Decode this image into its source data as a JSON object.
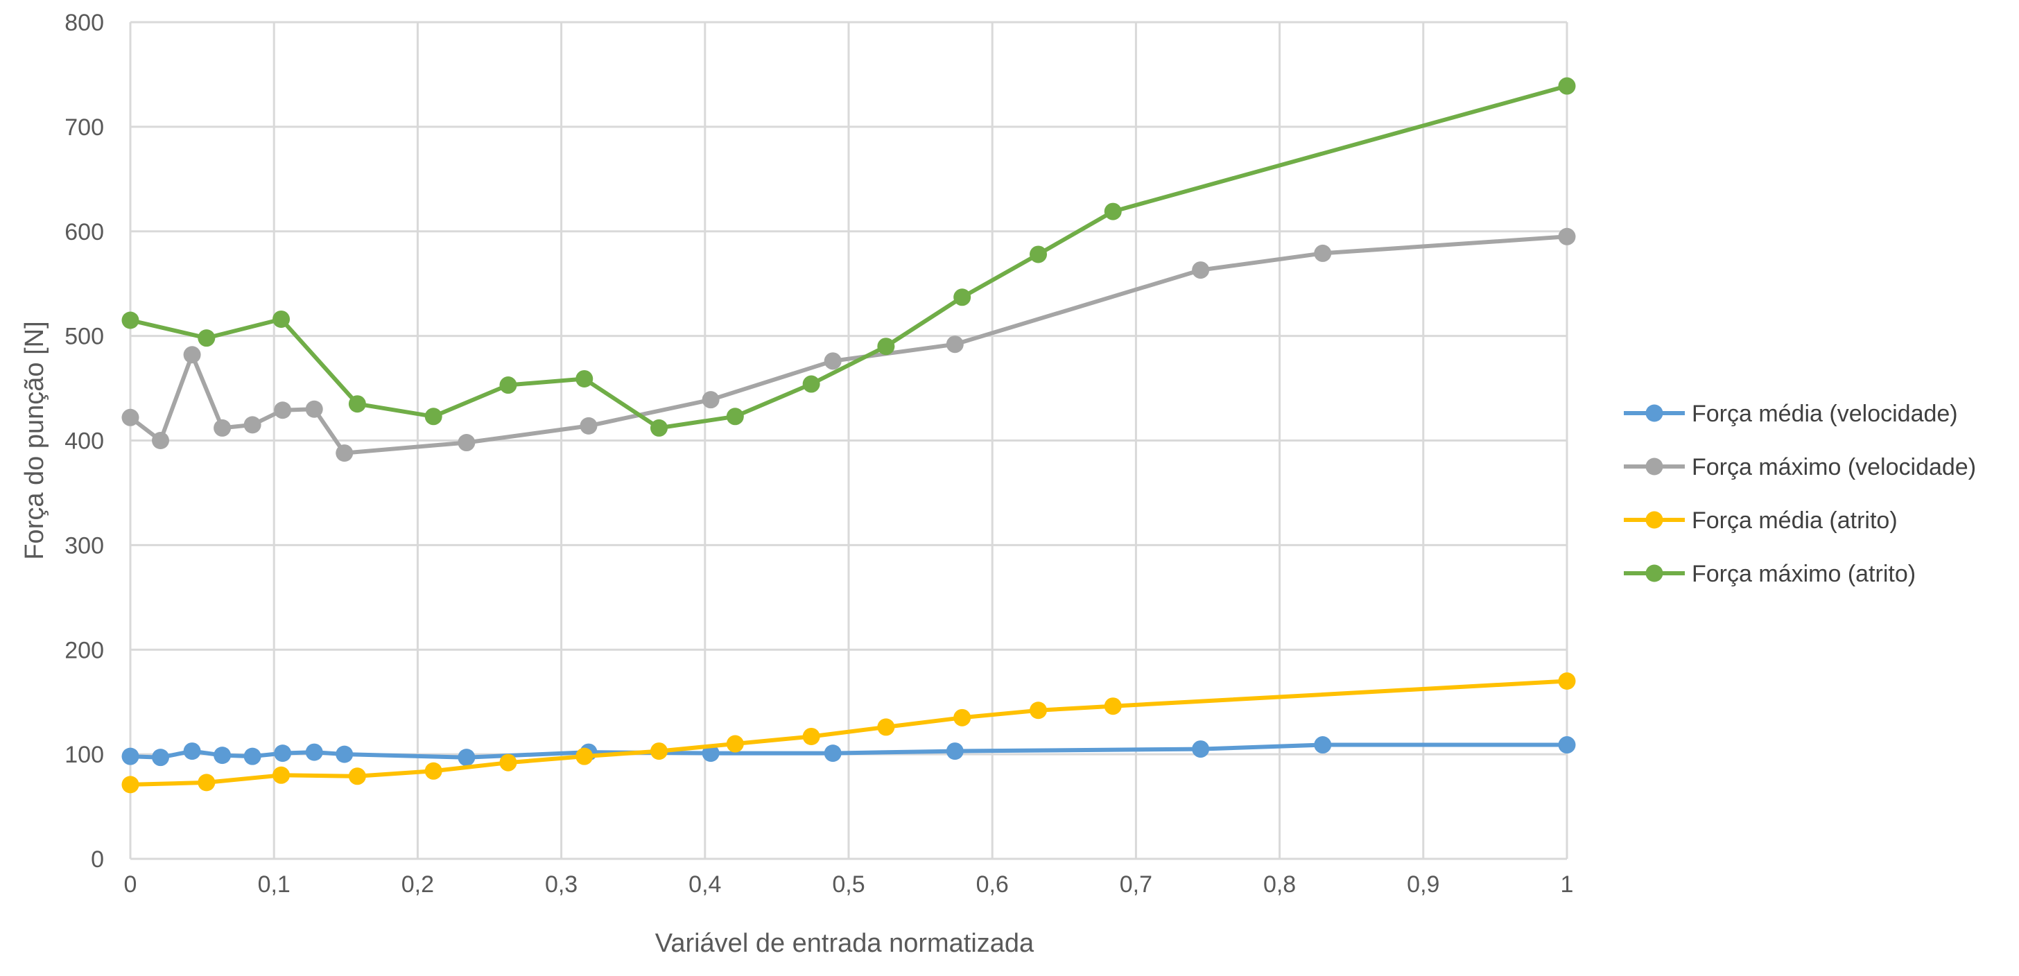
{
  "chart_data": {
    "type": "line",
    "title": "",
    "xlabel": "Variável de entrada normatizada",
    "ylabel": "Força do punção [N]",
    "xlim": [
      0,
      1
    ],
    "ylim": [
      0,
      800
    ],
    "x_ticks": [
      0,
      0.1,
      0.2,
      0.3,
      0.4,
      0.5,
      0.6,
      0.7,
      0.8,
      0.9,
      1
    ],
    "x_tick_labels": [
      "0",
      "0,1",
      "0,2",
      "0,3",
      "0,4",
      "0,5",
      "0,6",
      "0,7",
      "0,8",
      "0,9",
      "1"
    ],
    "y_ticks": [
      0,
      100,
      200,
      300,
      400,
      500,
      600,
      700,
      800
    ],
    "y_tick_labels": [
      "0",
      "100",
      "200",
      "300",
      "400",
      "500",
      "600",
      "700",
      "800"
    ],
    "grid": true,
    "legend_position": "right",
    "series": [
      {
        "name": "Força média (velocidade)",
        "color": "#5b9bd5",
        "points": [
          [
            0,
            98
          ],
          [
            0.021,
            97
          ],
          [
            0.043,
            103
          ],
          [
            0.064,
            99
          ],
          [
            0.085,
            98
          ],
          [
            0.106,
            101
          ],
          [
            0.128,
            102
          ],
          [
            0.149,
            100
          ],
          [
            0.234,
            97
          ],
          [
            0.319,
            102
          ],
          [
            0.404,
            101
          ],
          [
            0.489,
            101
          ],
          [
            0.574,
            103
          ],
          [
            0.745,
            105
          ],
          [
            0.83,
            109
          ],
          [
            1,
            109
          ]
        ]
      },
      {
        "name": "Força máximo (velocidade)",
        "color": "#a5a5a5",
        "points": [
          [
            0,
            422
          ],
          [
            0.021,
            400
          ],
          [
            0.043,
            482
          ],
          [
            0.064,
            412
          ],
          [
            0.085,
            415
          ],
          [
            0.106,
            429
          ],
          [
            0.128,
            430
          ],
          [
            0.149,
            388
          ],
          [
            0.234,
            398
          ],
          [
            0.319,
            414
          ],
          [
            0.404,
            439
          ],
          [
            0.489,
            476
          ],
          [
            0.574,
            492
          ],
          [
            0.745,
            563
          ],
          [
            0.83,
            579
          ],
          [
            1,
            595
          ]
        ]
      },
      {
        "name": "Força média (atrito)",
        "color": "#ffc000",
        "points": [
          [
            0,
            71
          ],
          [
            0.053,
            73
          ],
          [
            0.105,
            80
          ],
          [
            0.158,
            79
          ],
          [
            0.211,
            84
          ],
          [
            0.263,
            92
          ],
          [
            0.316,
            98
          ],
          [
            0.368,
            103
          ],
          [
            0.421,
            110
          ],
          [
            0.474,
            117
          ],
          [
            0.526,
            126
          ],
          [
            0.579,
            135
          ],
          [
            0.632,
            142
          ],
          [
            0.684,
            146
          ],
          [
            1,
            170
          ]
        ]
      },
      {
        "name": "Força máximo (atrito)",
        "color": "#70ad47",
        "points": [
          [
            0,
            515
          ],
          [
            0.053,
            498
          ],
          [
            0.105,
            516
          ],
          [
            0.158,
            435
          ],
          [
            0.211,
            423
          ],
          [
            0.263,
            453
          ],
          [
            0.316,
            459
          ],
          [
            0.368,
            412
          ],
          [
            0.421,
            423
          ],
          [
            0.474,
            454
          ],
          [
            0.526,
            490
          ],
          [
            0.579,
            537
          ],
          [
            0.632,
            578
          ],
          [
            0.684,
            619
          ],
          [
            1,
            739
          ]
        ]
      }
    ]
  }
}
